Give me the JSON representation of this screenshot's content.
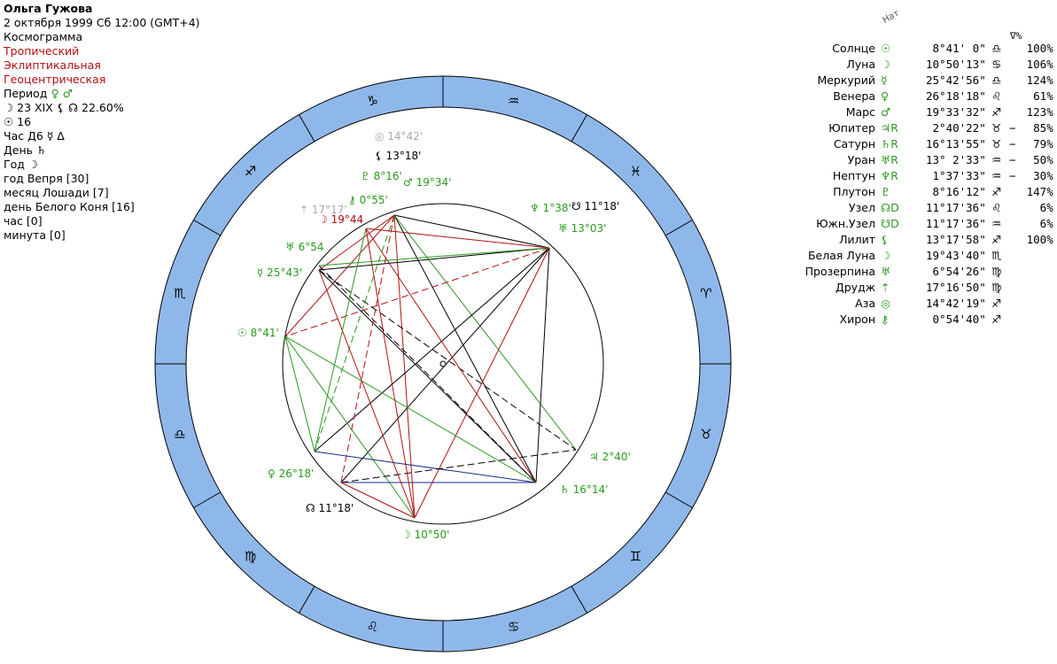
{
  "header": {
    "name": "Ольга Гужова",
    "datetime": "2 октября 1999  Сб  12:00 (GMT+4)",
    "chart_kind": "Космограмма",
    "zodiac": "Тропический",
    "coords": "Эклиптикальная",
    "center": "Геоцентрическая",
    "period_label": "Период",
    "period_glyphs": "♀ ♂",
    "moon_line": "☽  23 XIX  ⚸ ☊ 22.60%",
    "sun_line": "☉  16",
    "hour_line": "Час Д6  ☿ ∆",
    "day_line": "День  ♄",
    "year_line": "Год  ☽",
    "year_animal": "год Вепря [30]",
    "month_animal": "месяц Лошади [7]",
    "day_animal": "день Белого Коня [16]",
    "hour_val": "час  [0]",
    "minute_val": "минута  [0]"
  },
  "table_header": {
    "col_rot": "Нат",
    "col_pct": "∇%"
  },
  "planets": [
    {
      "name": "Солнце",
      "glyph": "☉",
      "pos": "8°41' 0\"",
      "sign": "♎",
      "retro": "",
      "pct": "100%"
    },
    {
      "name": "Луна",
      "glyph": "☽",
      "pos": "10°50'13\"",
      "sign": "♋",
      "retro": "",
      "pct": "106%"
    },
    {
      "name": "Меркурий",
      "glyph": "☿",
      "pos": "25°42'56\"",
      "sign": "♎",
      "retro": "",
      "pct": "124%"
    },
    {
      "name": "Венера",
      "glyph": "♀",
      "pos": "26°18'18\"",
      "sign": "♌",
      "retro": "",
      "pct": "61%"
    },
    {
      "name": "Марс",
      "glyph": "♂",
      "pos": "19°33'32\"",
      "sign": "♐",
      "retro": "",
      "pct": "123%"
    },
    {
      "name": "Юпитер",
      "glyph": "♃R",
      "pos": "2°40'22\"",
      "sign": "♉",
      "retro": "−",
      "pct": "85%"
    },
    {
      "name": "Сатурн",
      "glyph": "♄R",
      "pos": "16°13'55\"",
      "sign": "♉",
      "retro": "−",
      "pct": "79%"
    },
    {
      "name": "Уран",
      "glyph": "♅R",
      "pos": "13° 2'33\"",
      "sign": "♒",
      "retro": "−",
      "pct": "50%"
    },
    {
      "name": "Нептун",
      "glyph": "♆R",
      "pos": "1°37'33\"",
      "sign": "♒",
      "retro": "−",
      "pct": "30%"
    },
    {
      "name": "Плутон",
      "glyph": "♇",
      "pos": "8°16'12\"",
      "sign": "♐",
      "retro": "",
      "pct": "147%"
    },
    {
      "name": "Узел",
      "glyph": "☊D",
      "pos": "11°17'36\"",
      "sign": "♌",
      "retro": "",
      "pct": "6%"
    },
    {
      "name": "Южн.Узел",
      "glyph": "☋D",
      "pos": "11°17'36\"",
      "sign": "♒",
      "retro": "",
      "pct": "6%"
    },
    {
      "name": "Лилит",
      "glyph": "⚸",
      "pos": "13°17'58\"",
      "sign": "♐",
      "retro": "",
      "pct": "100%"
    },
    {
      "name": "Белая Луна",
      "glyph": "☽",
      "pos": "19°43'40\"",
      "sign": "♏",
      "retro": "",
      "pct": ""
    },
    {
      "name": "Прозерпина",
      "glyph": "♅",
      "pos": "6°54'26\"",
      "sign": "♍",
      "retro": "",
      "pct": ""
    },
    {
      "name": "Друдж",
      "glyph": "⇡",
      "pos": "17°16'50\"",
      "sign": "♍",
      "retro": "",
      "pct": ""
    },
    {
      "name": "Аза",
      "glyph": "◎",
      "pos": "14°42'19\"",
      "sign": "♐",
      "retro": "",
      "pct": ""
    },
    {
      "name": "Хирон",
      "glyph": "⚷",
      "pos": "0°54'40\"",
      "sign": "♐",
      "retro": "",
      "pct": ""
    }
  ],
  "zodiac_signs": [
    "♐",
    "♑",
    "♒",
    "♓",
    "♈",
    "♉",
    "♊",
    "♋",
    "♌",
    "♍",
    "♎",
    "♏"
  ],
  "chart_labels": [
    {
      "text": "14°42'",
      "color": "#aaaaaa",
      "glyph": "◎",
      "id": "aza"
    },
    {
      "text": "13°18'",
      "color": "#000000",
      "glyph": "⚸",
      "id": "lilith"
    },
    {
      "text": "8°16'",
      "color": "#2a9a1e",
      "glyph": "♇",
      "id": "pluto"
    },
    {
      "text": "19°34'",
      "color": "#2a9a1e",
      "glyph": "♂",
      "id": "mars"
    },
    {
      "text": "0°55'",
      "color": "#2a9a1e",
      "glyph": "⚷",
      "id": "chiron"
    },
    {
      "text": "17°17'",
      "color": "#aaaaaa",
      "glyph": "⇡",
      "id": "druzh"
    },
    {
      "text": "19°44",
      "color": "#b01010",
      "glyph": "☽",
      "id": "whitemoon"
    },
    {
      "text": "1°38'",
      "color": "#2a9a1e",
      "glyph": "♆",
      "id": "neptune"
    },
    {
      "text": "11°18'",
      "color": "#000000",
      "glyph": "☋",
      "id": "snode"
    },
    {
      "text": "13°03'",
      "color": "#2a9a1e",
      "glyph": "♅",
      "id": "uranus"
    },
    {
      "text": "6°54",
      "color": "#2a9a1e",
      "glyph": "♅",
      "id": "proserpina"
    },
    {
      "text": "25°43'",
      "color": "#2a9a1e",
      "glyph": "☿",
      "id": "mercury"
    },
    {
      "text": "8°41'",
      "color": "#2a9a1e",
      "glyph": "☉",
      "id": "sun"
    },
    {
      "text": "2°40'",
      "color": "#2a9a1e",
      "glyph": "♃",
      "id": "jupiter"
    },
    {
      "text": "16°14'",
      "color": "#2a9a1e",
      "glyph": "♄",
      "id": "saturn"
    },
    {
      "text": "26°18'",
      "color": "#2a9a1e",
      "glyph": "♀",
      "id": "venus"
    },
    {
      "text": "11°18'",
      "color": "#000000",
      "glyph": "☊",
      "id": "nnode"
    },
    {
      "text": "10°50'",
      "color": "#2a9a1e",
      "glyph": "☽",
      "id": "moon"
    }
  ],
  "colors": {
    "ring": "#8fb8ea",
    "green": "#2a9a1e",
    "red": "#b01010",
    "navy": "#1a2a8a"
  }
}
